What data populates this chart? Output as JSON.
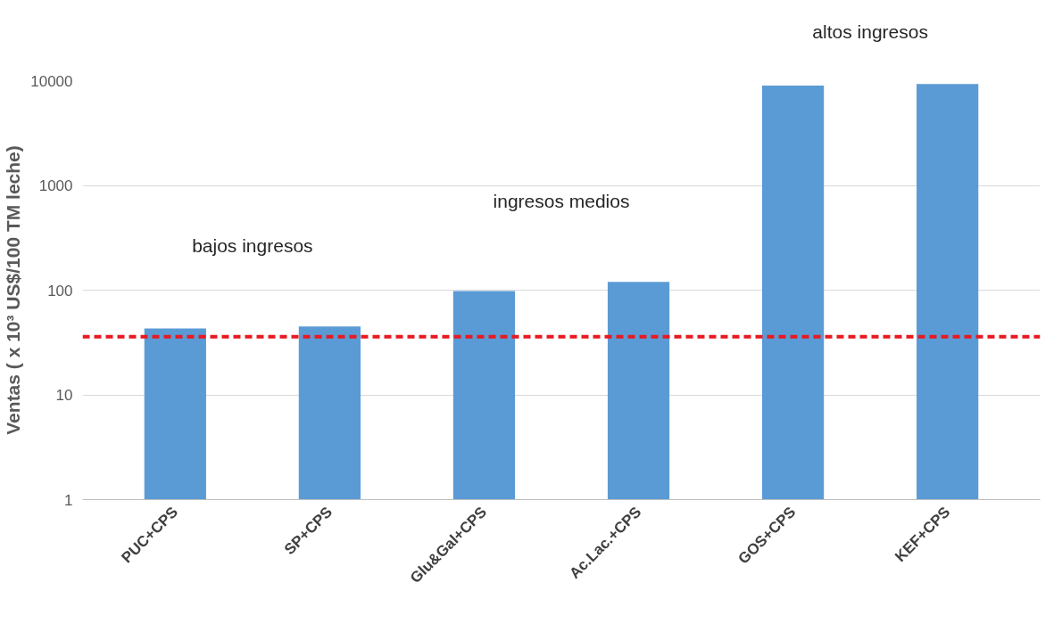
{
  "chart_data": {
    "type": "bar",
    "ylabel": "Ventas ( x 10³ US$/100 TM leche)",
    "categories": [
      "PUC+CPS",
      "SP+CPS",
      "Glu&Gal+CPS",
      "Ac.Lac.+CPS",
      "GOS+CPS",
      "KEF+CPS"
    ],
    "values": [
      43,
      45,
      98,
      120,
      9000,
      9300
    ],
    "color": "#5b9bd5",
    "log": true,
    "ylim": [
      1,
      10000
    ],
    "yticks": [
      1,
      10,
      100,
      1000,
      10000
    ],
    "grid": "y",
    "ref_lines": [
      {
        "axis": "y",
        "value": 36,
        "color": "#e8191f",
        "line_style": "dashed"
      }
    ],
    "annotations": [
      "bajos ingresos",
      "ingresos medios",
      "altos ingresos"
    ]
  }
}
